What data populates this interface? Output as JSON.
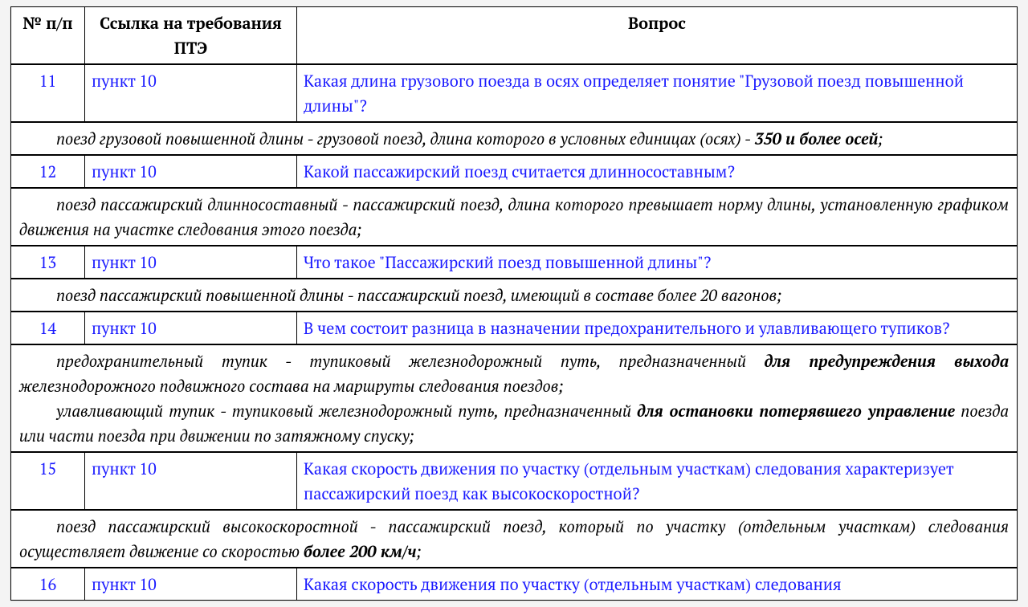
{
  "headers": {
    "num": "№ п/п",
    "ref": "Ссылка на требования ПТЭ",
    "question": "Вопрос"
  },
  "rows": [
    {
      "num": "11",
      "ref": "пункт 10",
      "question": "Какая длина грузового поезда в осях определяет понятие \"Грузовой поезд повышенной длины\"?",
      "answer_parts": [
        {
          "indent": true,
          "segments": [
            {
              "text": "поезд грузовой повышенной длины - грузовой поезд, длина которого в условных единицах (осях) - "
            },
            {
              "text": "350 и более осей",
              "bold": true
            },
            {
              "text": ";"
            }
          ]
        }
      ]
    },
    {
      "num": "12",
      "ref": "пункт 10",
      "question": "Какой пассажирский поезд считается длинносоставным?",
      "answer_parts": [
        {
          "indent": true,
          "segments": [
            {
              "text": "поезд пассажирский длинносоставный - пассажирский поезд, длина которого превышает норму длины, установленную графиком движения на участке следования этого поезда;"
            }
          ]
        }
      ]
    },
    {
      "num": "13",
      "ref": "пункт 10",
      "question": "Что такое \"Пассажирский поезд повышенной длины\"?",
      "answer_parts": [
        {
          "indent": true,
          "segments": [
            {
              "text": "поезд пассажирский повышенной длины - пассажирский поезд, имеющий в составе более 20 вагонов;"
            }
          ]
        }
      ]
    },
    {
      "num": "14",
      "ref": "пункт 10",
      "question": "В чем состоит разница в назначении предохранительного и улавливающего тупиков?",
      "answer_parts": [
        {
          "indent": true,
          "segments": [
            {
              "text": "предохранительный тупик - тупиковый железнодорожный путь, предназначенный "
            },
            {
              "text": "для предупреждения выхода",
              "bold": true
            },
            {
              "text": " железнодорожного подвижного состава на маршруты следования поездов;"
            }
          ]
        },
        {
          "indent": true,
          "segments": [
            {
              "text": "улавливающий тупик - тупиковый железнодорожный путь, предназначенный "
            },
            {
              "text": "для остановки потерявшего управление",
              "bold": true
            },
            {
              "text": " поезда или части поезда при движении по затяжному спуску;"
            }
          ]
        }
      ]
    },
    {
      "num": "15",
      "ref": "пункт 10",
      "question": "Какая скорость движения по участку (отдельным участкам) следования характеризует пассажирский поезд как высокоскоростной?",
      "answer_parts": [
        {
          "indent": true,
          "segments": [
            {
              "text": "поезд пассажирский высокоскоростной - пассажирский поезд, который по участку (отдельным участкам) следования осуществляет движение со скоростью "
            },
            {
              "text": "более 200 км/ч",
              "bold": true
            },
            {
              "text": ";"
            }
          ]
        }
      ]
    },
    {
      "num": "16",
      "ref": "пункт 10",
      "question": "Какая скорость движения по участку (отдельным участкам) следования"
    }
  ],
  "colors": {
    "link": "#1a1aff",
    "text": "#000000",
    "border": "#000000",
    "background": "#ffffff"
  }
}
